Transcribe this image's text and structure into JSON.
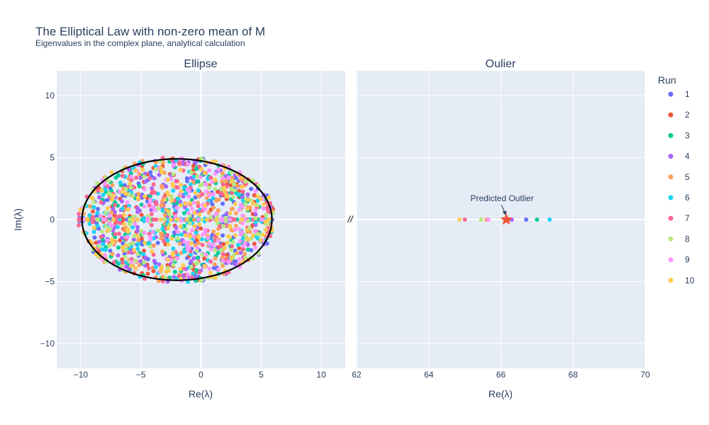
{
  "title": "The Elliptical Law with non-zero mean of M",
  "subtitle": "Eigenvalues in the complex plane, analytical calculation",
  "break_mark": "//",
  "legend": {
    "title": "Run",
    "items": [
      {
        "label": "1",
        "color": "#636efa"
      },
      {
        "label": "2",
        "color": "#EF553B"
      },
      {
        "label": "3",
        "color": "#00cc96"
      },
      {
        "label": "4",
        "color": "#ab63fa"
      },
      {
        "label": "5",
        "color": "#FFA15A"
      },
      {
        "label": "6",
        "color": "#19d3f3"
      },
      {
        "label": "7",
        "color": "#FF6692"
      },
      {
        "label": "8",
        "color": "#B6E880"
      },
      {
        "label": "9",
        "color": "#FF97FF"
      },
      {
        "label": "10",
        "color": "#FECB52"
      }
    ]
  },
  "chart_data": [
    {
      "type": "scatter",
      "title": "Ellipse",
      "xlabel": "Re(λ)",
      "ylabel": "Im(λ)",
      "xlim": [
        -12,
        12
      ],
      "ylim": [
        -12,
        12
      ],
      "xticks": [
        -10,
        -5,
        0,
        5,
        10
      ],
      "yticks": [
        -10,
        -5,
        0,
        5,
        10
      ],
      "xtick_labels": [
        "−10",
        "−5",
        "0",
        "5",
        "10"
      ],
      "ytick_labels": [
        "−10",
        "−5",
        "0",
        "5",
        "10"
      ],
      "grid": true,
      "analytic_ellipse": {
        "center": [
          -2.0,
          0.0
        ],
        "semi_axis_re": 7.9,
        "semi_axis_im": 4.9,
        "color": "#000000"
      },
      "points_description_bounds": {
        "re_range": [
          -9.4,
          6.3
        ],
        "im_range": [
          -5.4,
          5.4
        ],
        "points_per_run": 99,
        "runs": 10
      }
    },
    {
      "type": "scatter",
      "title": "Oulier",
      "xlabel": "Re(λ)",
      "xlim": [
        62,
        70
      ],
      "ylim": [
        -12,
        12
      ],
      "xticks": [
        62,
        64,
        66,
        68,
        70
      ],
      "xtick_labels": [
        "62",
        "64",
        "66",
        "68",
        "70"
      ],
      "grid": true,
      "series": [
        {
          "name": "1",
          "x": 66.7,
          "y": 0
        },
        {
          "name": "2",
          "x": 66.2,
          "y": 0
        },
        {
          "name": "3",
          "x": 67.0,
          "y": 0
        },
        {
          "name": "4",
          "x": 66.3,
          "y": 0
        },
        {
          "name": "5",
          "x": 65.6,
          "y": 0
        },
        {
          "name": "6",
          "x": 67.35,
          "y": 0
        },
        {
          "name": "7",
          "x": 65.0,
          "y": 0
        },
        {
          "name": "8",
          "x": 65.45,
          "y": 0
        },
        {
          "name": "9",
          "x": 65.65,
          "y": 0
        },
        {
          "name": "10",
          "x": 64.85,
          "y": 0
        }
      ],
      "predicted": {
        "x": 66.15,
        "y": 0,
        "marker": "star",
        "color": "#EF553B",
        "label": "Predicted Outlier"
      }
    }
  ]
}
